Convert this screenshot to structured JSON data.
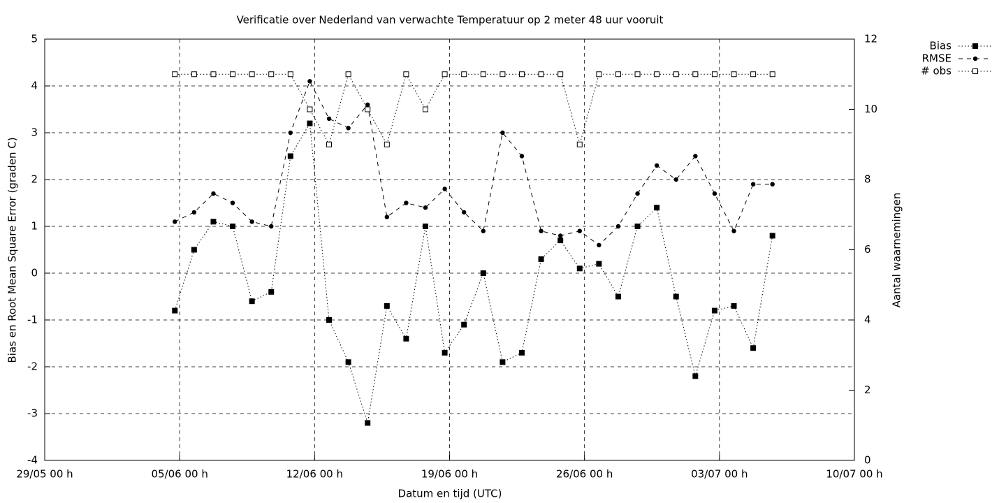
{
  "chart_data": {
    "type": "line",
    "title": "Verificatie over Nederland van verwachte Temperatuur op 2 meter 48 uur vooruit",
    "x_label": "Datum en tijd (UTC)",
    "y_label": "Bias en Root Mean Square Error (graden C)",
    "y2_label": "Aantal waarnemingen",
    "x": [
      "04/06 18 h",
      "05/06 18 h",
      "06/06 18 h",
      "07/06 18 h",
      "08/06 18 h",
      "09/06 18 h",
      "10/06 18 h",
      "11/06 18 h",
      "12/06 18 h",
      "13/06 18 h",
      "14/06 18 h",
      "15/06 18 h",
      "16/06 18 h",
      "17/06 18 h",
      "18/06 18 h",
      "19/06 18 h",
      "20/06 18 h",
      "21/06 18 h",
      "22/06 18 h",
      "23/06 18 h",
      "24/06 18 h",
      "25/06 18 h",
      "26/06 18 h",
      "27/06 18 h",
      "28/06 18 h",
      "29/06 18 h",
      "30/06 18 h",
      "01/07 18 h",
      "02/07 18 h",
      "03/07 18 h",
      "04/07 18 h",
      "05/07 18 h"
    ],
    "series": [
      {
        "name": "Bias",
        "color": "#000000",
        "line_style": "dotted",
        "marker": "square",
        "values": [
          -0.8,
          0.5,
          1.1,
          1.0,
          -0.6,
          -0.4,
          2.5,
          3.2,
          -1.0,
          -1.9,
          -3.2,
          -0.7,
          -1.4,
          1.0,
          -1.7,
          -1.1,
          0,
          -1.9,
          -1.7,
          0.3,
          0.7,
          0.1,
          0.2,
          -0.5,
          1.0,
          1.4,
          -0.5,
          -2.2,
          -0.8,
          -0.7,
          -1.6,
          0.8
        ]
      },
      {
        "name": "RMSE",
        "color": "#000000",
        "line_style": "dashed",
        "marker": "circle",
        "values": [
          1.1,
          1.3,
          1.7,
          1.5,
          1.1,
          1.0,
          3.0,
          4.1,
          3.3,
          3.1,
          3.6,
          1.2,
          1.5,
          1.4,
          1.8,
          1.3,
          0.9,
          3.0,
          2.5,
          0.9,
          0.8,
          0.9,
          0.6,
          1.0,
          1.7,
          2.3,
          2.0,
          2.5,
          1.7,
          0.9,
          1.9,
          1.9
        ]
      },
      {
        "name": "# obs",
        "color": "#000000",
        "line_style": "dotted",
        "marker": "open-square",
        "axis": "y2",
        "values": [
          11,
          11,
          11,
          11,
          11,
          11,
          11,
          10,
          9,
          11,
          10,
          9,
          11,
          10,
          11,
          11,
          11,
          11,
          11,
          11,
          11,
          9,
          11,
          11,
          11,
          11,
          11,
          11,
          11,
          11,
          11,
          11
        ]
      }
    ],
    "xlim": [
      "29/05 00 h",
      "10/07 00 h"
    ],
    "xticks": [
      "29/05 00 h",
      "05/06 00 h",
      "12/06 00 h",
      "19/06 00 h",
      "26/06 00 h",
      "03/07 00 h",
      "10/07 00 h"
    ],
    "ylim": [
      -4,
      5
    ],
    "yticks": [
      -4,
      -3,
      -2,
      -1,
      0,
      1,
      2,
      3,
      4,
      5
    ],
    "y2lim": [
      0,
      12
    ],
    "y2ticks": [
      0,
      2,
      4,
      6,
      8,
      10,
      12
    ],
    "grid": true,
    "legend": "outside-right-top"
  }
}
